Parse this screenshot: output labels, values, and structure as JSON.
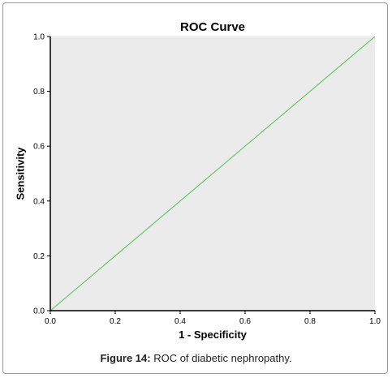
{
  "caption": {
    "label": "Figure 14:",
    "text": " ROC of diabetic nephropathy."
  },
  "colors": {
    "plot_background": "#ebebeb",
    "curve": "#4fc24f",
    "axis": "#000000",
    "frame": "#9a9a9a"
  },
  "chart_data": {
    "type": "line",
    "title": "ROC Curve",
    "xlabel": "1 - Specificity",
    "ylabel": "Sensitivity",
    "xlim": [
      0.0,
      1.0
    ],
    "ylim": [
      0.0,
      1.0
    ],
    "x_ticks": [
      0.0,
      0.2,
      0.4,
      0.6,
      0.8,
      1.0
    ],
    "y_ticks": [
      0.0,
      0.2,
      0.4,
      0.6,
      0.8,
      1.0
    ],
    "x_tick_labels": [
      "0.0",
      "0.2",
      "0.4",
      "0.6",
      "0.8",
      "1.0"
    ],
    "y_tick_labels": [
      "0.0",
      "0.2",
      "0.4",
      "0.6",
      "0.8",
      "1.0"
    ],
    "grid": false,
    "series": [
      {
        "x": [
          0.0,
          1.0
        ],
        "y": [
          0.0,
          1.0
        ]
      }
    ]
  }
}
